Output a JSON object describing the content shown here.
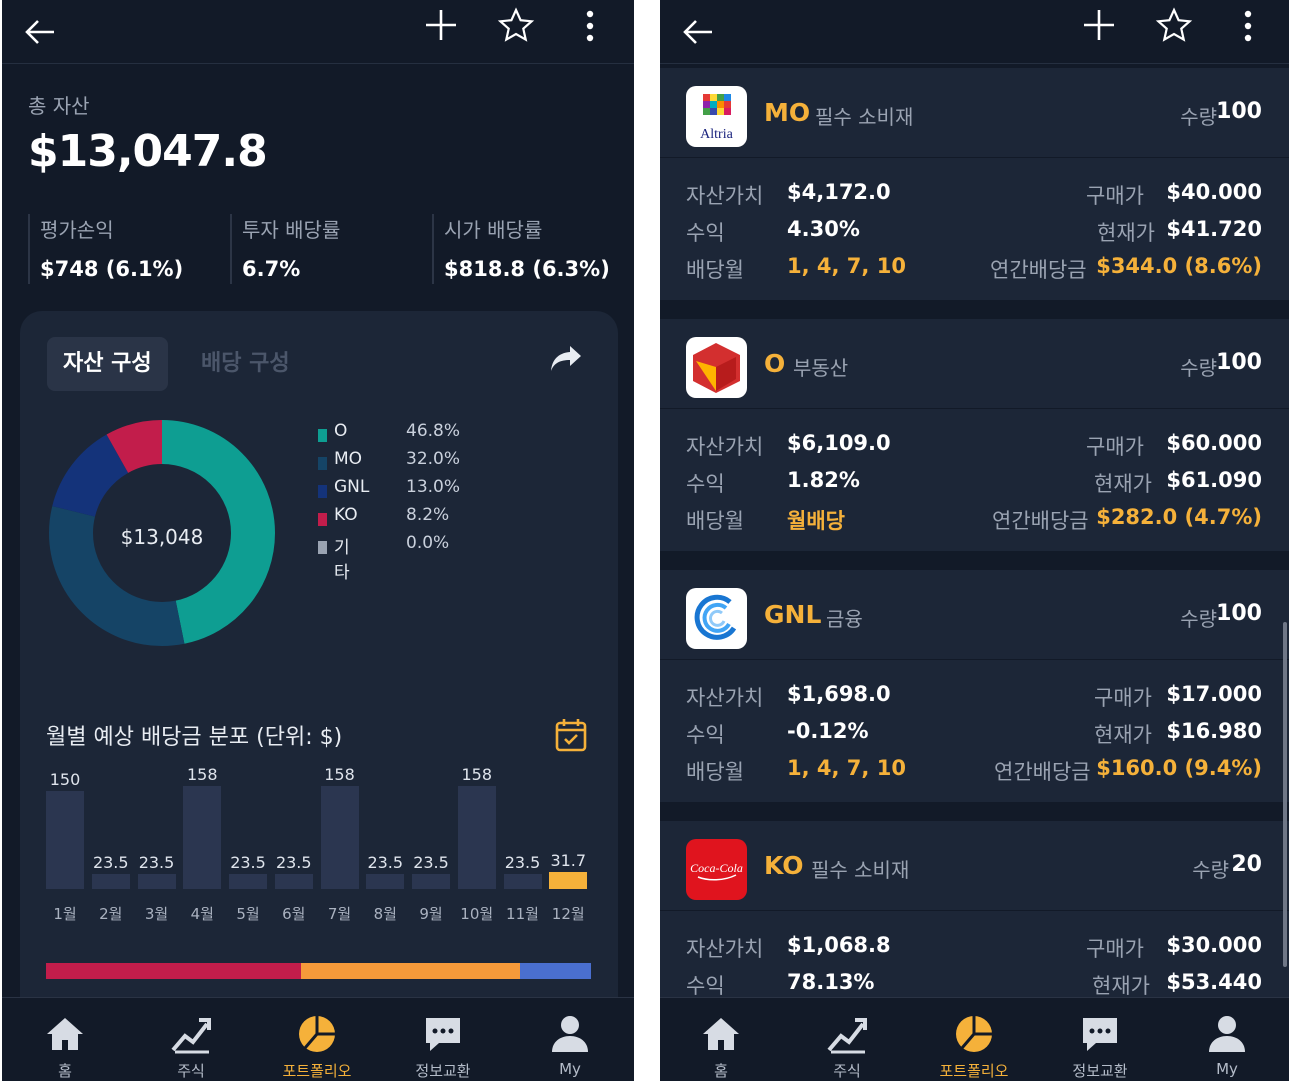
{
  "left": {
    "total_label": "총 자산",
    "total_value": "$13,047.8",
    "stats": [
      {
        "label": "평가손익",
        "value": "$748 (6.1%)"
      },
      {
        "label": "투자 배당률",
        "value": "6.7%"
      },
      {
        "label": "시가 배당률",
        "value": "$818.8 (6.3%)"
      }
    ],
    "tabs": {
      "active": "자산 구성",
      "inactive": "배당 구성"
    },
    "donut_center": "$13,048",
    "legend": [
      {
        "name": "O",
        "pct": "46.8%",
        "color": "#0e9e92",
        "value": 46.8
      },
      {
        "name": "MO",
        "pct": "32.0%",
        "color": "#154466",
        "value": 32.0
      },
      {
        "name": "GNL",
        "pct": "13.0%",
        "color": "#14337a",
        "value": 13.0
      },
      {
        "name": "KO",
        "pct": "8.2%",
        "color": "#c21d4b",
        "value": 8.2
      },
      {
        "name": "기타",
        "pct": "0.0%",
        "color": "#9aa3b2",
        "value": 0.0
      }
    ],
    "monthly_title": "월별 예상 배당금 분포 (단위: $)",
    "monthly": [
      {
        "month": "1월",
        "label": "150",
        "value": 150
      },
      {
        "month": "2월",
        "label": "23.5",
        "value": 23.5
      },
      {
        "month": "3월",
        "label": "23.5",
        "value": 23.5
      },
      {
        "month": "4월",
        "label": "158",
        "value": 158
      },
      {
        "month": "5월",
        "label": "23.5",
        "value": 23.5
      },
      {
        "month": "6월",
        "label": "23.5",
        "value": 23.5
      },
      {
        "month": "7월",
        "label": "158",
        "value": 158
      },
      {
        "month": "8월",
        "label": "23.5",
        "value": 23.5
      },
      {
        "month": "9월",
        "label": "23.5",
        "value": 23.5
      },
      {
        "month": "10월",
        "label": "158",
        "value": 158
      },
      {
        "month": "11월",
        "label": "23.5",
        "value": 23.5
      },
      {
        "month": "12월",
        "label": "31.7",
        "value": 31.7
      }
    ],
    "sector_bar": [
      {
        "color": "#c21d4b",
        "value": 46.8
      },
      {
        "color": "#f59a3a",
        "value": 40.2
      },
      {
        "color": "#4a6fcf",
        "value": 13.0
      }
    ]
  },
  "right": {
    "holdings": [
      {
        "ticker": "MO",
        "sector": "필수 소비재",
        "qty_label": "수량",
        "qty": "100",
        "asset_label": "자산가치",
        "asset": "$4,172.0",
        "buy_label": "구매가",
        "buy": "$40.000",
        "ret_label": "수익",
        "ret": "4.30%",
        "cur_label": "현재가",
        "cur": "$41.720",
        "div_month_label": "배당월",
        "div_month": "1, 4, 7, 10",
        "annual_label": "연간배당금",
        "annual": "$344.0 (8.6%)",
        "logo_text": "Altria"
      },
      {
        "ticker": "O",
        "sector": "부동산",
        "qty_label": "수량",
        "qty": "100",
        "asset_label": "자산가치",
        "asset": "$6,109.0",
        "buy_label": "구매가",
        "buy": "$60.000",
        "ret_label": "수익",
        "ret": "1.82%",
        "cur_label": "현재가",
        "cur": "$61.090",
        "div_month_label": "배당월",
        "div_month": "월배당",
        "annual_label": "연간배당금",
        "annual": "$282.0 (4.7%)"
      },
      {
        "ticker": "GNL",
        "sector": "금융",
        "qty_label": "수량",
        "qty": "100",
        "asset_label": "자산가치",
        "asset": "$1,698.0",
        "buy_label": "구매가",
        "buy": "$17.000",
        "ret_label": "수익",
        "ret": "-0.12%",
        "cur_label": "현재가",
        "cur": "$16.980",
        "div_month_label": "배당월",
        "div_month": "1, 4, 7, 10",
        "annual_label": "연간배당금",
        "annual": "$160.0 (9.4%)"
      },
      {
        "ticker": "KO",
        "sector": "필수 소비재",
        "qty_label": "수량",
        "qty": "20",
        "asset_label": "자산가치",
        "asset": "$1,068.8",
        "buy_label": "구매가",
        "buy": "$30.000",
        "ret_label": "수익",
        "ret": "78.13%",
        "cur_label": "현재가",
        "cur": "$53.440",
        "logo_text": "Coca-Cola"
      }
    ]
  },
  "nav": [
    {
      "label": "홈",
      "icon": "home-icon"
    },
    {
      "label": "주식",
      "icon": "chart-trend-icon"
    },
    {
      "label": "포트폴리오",
      "icon": "pie-chart-icon",
      "active": true
    },
    {
      "label": "정보교환",
      "icon": "chat-icon"
    },
    {
      "label": "My",
      "icon": "user-icon"
    }
  ]
}
